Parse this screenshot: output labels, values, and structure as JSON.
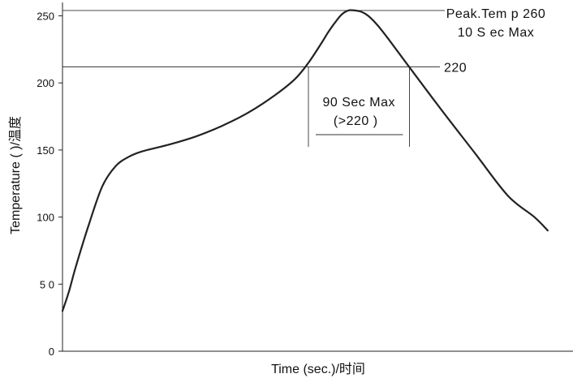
{
  "chart_data": {
    "type": "line",
    "title": "",
    "xlabel": "Time (sec.)/时间",
    "ylabel": "Temperature (    )/温度",
    "ylim": [
      0,
      260
    ],
    "xlim": [
      0,
      370
    ],
    "yticks": [
      {
        "value": 0,
        "label": "0"
      },
      {
        "value": 50,
        "label": "5 0"
      },
      {
        "value": 100,
        "label": "100"
      },
      {
        "value": 150,
        "label": "150"
      },
      {
        "value": 200,
        "label": "200"
      },
      {
        "value": 250,
        "label": "250"
      }
    ],
    "series": [
      {
        "x": [
          0,
          5,
          10,
          20,
          30,
          40,
          50,
          60,
          80,
          100,
          120,
          140,
          160,
          175,
          185,
          195,
          200,
          205,
          210,
          215,
          220,
          225,
          230,
          237,
          245,
          260,
          285,
          310,
          335,
          355,
          365
        ],
        "values": [
          30,
          45,
          63,
          95,
          123,
          138,
          145,
          149,
          154,
          160,
          168,
          178,
          191,
          203,
          215,
          230,
          238,
          245,
          251,
          254,
          254,
          253,
          250,
          243,
          233,
          213,
          180,
          148,
          116,
          100,
          90
        ]
      }
    ],
    "reference_lines": [
      {
        "y": 254,
        "label": "Peak.Tem p 260",
        "label2": "10 S ec Max"
      },
      {
        "y": 212,
        "label": "220"
      }
    ],
    "annotations": [
      {
        "x_start": 185,
        "x_end": 261,
        "label": "90 Sec Max",
        "label2": "(>220    )"
      }
    ],
    "grid": false,
    "legend": "none"
  }
}
